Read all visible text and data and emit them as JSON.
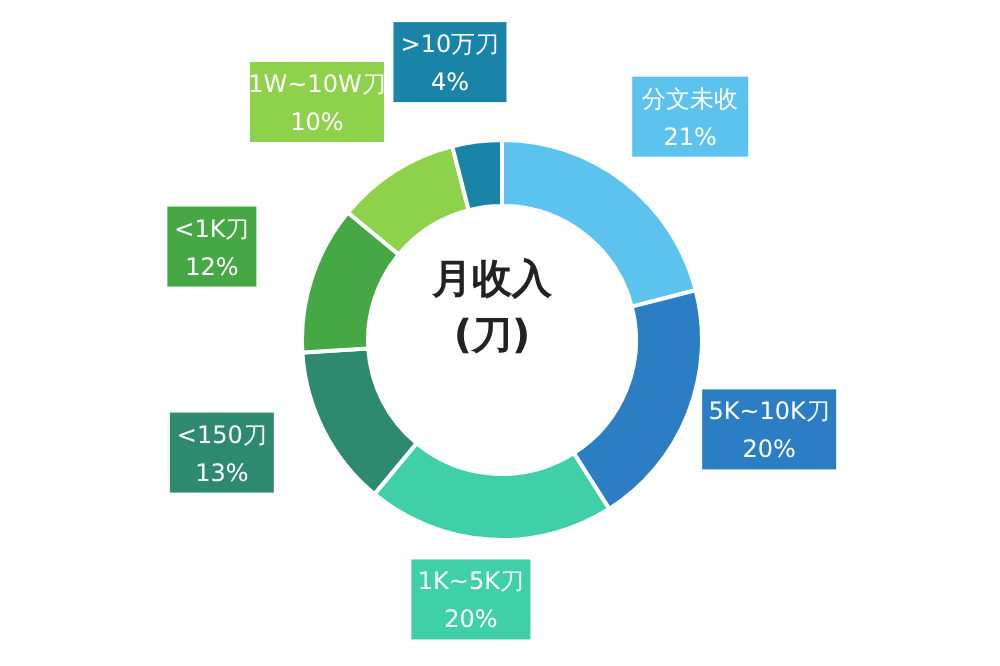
{
  "chart_data": {
    "type": "donut",
    "title": "月收入\n(刀)",
    "categories": [
      "分文未收",
      "5K~10K刀",
      "1K~5K刀",
      "<150刀",
      "<1K刀",
      "1W~10W刀",
      ">10万刀"
    ],
    "values": [
      21,
      20,
      20,
      13,
      12,
      10,
      4
    ],
    "colors": [
      "#5bc3ee",
      "#2b7ec4",
      "#40d0a8",
      "#2e8a6e",
      "#45a845",
      "#8ed14a",
      "#1a84a8"
    ],
    "value_labels": [
      "21%",
      "20%",
      "20%",
      "13%",
      "12%",
      "10%",
      "4%"
    ],
    "legend": false
  }
}
